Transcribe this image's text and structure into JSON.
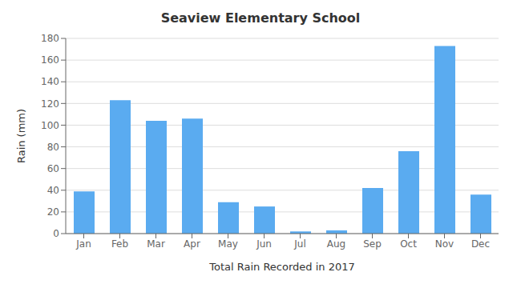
{
  "chart_data": {
    "type": "bar",
    "title": "Seaview Elementary School",
    "xlabel": "Total Rain Recorded in 2017",
    "ylabel": "Rain (mm)",
    "categories": [
      "Jan",
      "Feb",
      "Mar",
      "Apr",
      "May",
      "Jun",
      "Jul",
      "Aug",
      "Sep",
      "Oct",
      "Nov",
      "Dec"
    ],
    "values": [
      39,
      123,
      104,
      106,
      29,
      25,
      2,
      3,
      42,
      76,
      173,
      36
    ],
    "color": "#5aabf0",
    "ylim": [
      0,
      180
    ],
    "yticks": [
      0,
      20,
      40,
      60,
      80,
      100,
      120,
      140,
      160,
      180
    ],
    "grid": true
  }
}
